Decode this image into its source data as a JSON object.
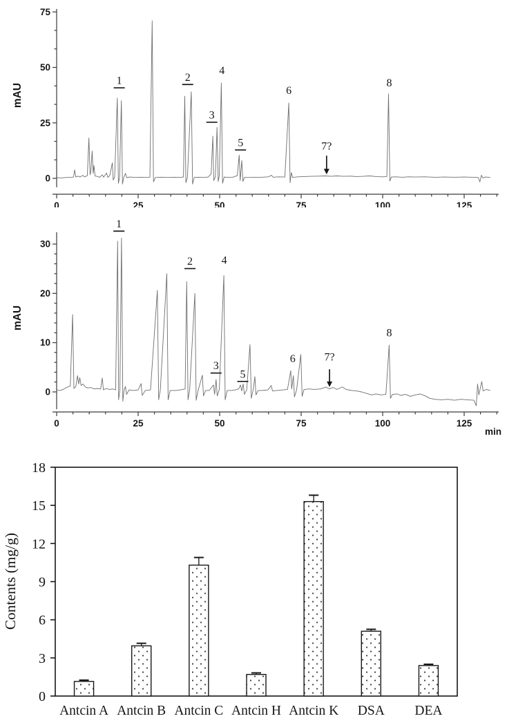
{
  "figure": {
    "background": "#ffffff",
    "trace_color": "#6e6e6e",
    "axis_color": "#3a3a3a",
    "text_color": "#161616"
  },
  "chart_data": [
    {
      "type": "line",
      "id": "chromatogram-top",
      "ylabel": "mAU",
      "xlabel": "",
      "xlim": [
        0,
        133
      ],
      "ylim": [
        -4,
        76
      ],
      "x_ticks": [
        0,
        25,
        50,
        75,
        100,
        125
      ],
      "y_ticks": [
        0,
        25,
        50,
        75
      ],
      "grid": false,
      "peak_labels": [
        {
          "text": "1",
          "x": 19.2,
          "y": 42.5,
          "underline": true
        },
        {
          "text": "2",
          "x": 40.2,
          "y": 44.0,
          "underline": true
        },
        {
          "text": "3",
          "x": 47.6,
          "y": 27.0,
          "underline": true
        },
        {
          "text": "4",
          "x": 50.7,
          "y": 47.0,
          "underline": false
        },
        {
          "text": "5",
          "x": 56.4,
          "y": 14.5,
          "underline": true
        },
        {
          "text": "6",
          "x": 71.2,
          "y": 38.0,
          "underline": false
        },
        {
          "text": "7?",
          "x": 82.8,
          "y": 13.0,
          "underline": false,
          "arrow": {
            "from_y": 10.2,
            "to_y": 1.8
          }
        },
        {
          "text": "8",
          "x": 102.0,
          "y": 41.5,
          "underline": false
        }
      ],
      "trace": [
        [
          0,
          0.3
        ],
        [
          1.5,
          0.2
        ],
        [
          3,
          0.4
        ],
        [
          4.5,
          0.4
        ],
        [
          5.2,
          0.6
        ],
        [
          5.5,
          3.8
        ],
        [
          5.9,
          0.6
        ],
        [
          6.6,
          1.0
        ],
        [
          7.2,
          0.6
        ],
        [
          8,
          1.3
        ],
        [
          8.6,
          0.7
        ],
        [
          9.4,
          1.2
        ],
        [
          9.9,
          18.2
        ],
        [
          10.25,
          1.6
        ],
        [
          10.5,
          3.2
        ],
        [
          10.9,
          12.3
        ],
        [
          11.2,
          2.2
        ],
        [
          11.45,
          5.8
        ],
        [
          11.8,
          1.0
        ],
        [
          12.4,
          0.9
        ],
        [
          13.2,
          0.5
        ],
        [
          14,
          1.6
        ],
        [
          14.4,
          0.5
        ],
        [
          15.3,
          2.4
        ],
        [
          15.7,
          0.4
        ],
        [
          16.3,
          1.2
        ],
        [
          17.1,
          7.0
        ],
        [
          17.35,
          -0.8
        ],
        [
          17.8,
          0.6
        ],
        [
          18.6,
          36.2
        ],
        [
          18.95,
          -2.2
        ],
        [
          19.3,
          0.4
        ],
        [
          19.85,
          35.0
        ],
        [
          20.2,
          -2.6
        ],
        [
          20.6,
          0.4
        ],
        [
          21.1,
          2.2
        ],
        [
          21.5,
          0.3
        ],
        [
          22.5,
          0.6
        ],
        [
          24,
          0.4
        ],
        [
          26,
          0.5
        ],
        [
          27.5,
          0.4
        ],
        [
          28.6,
          0.5
        ],
        [
          29.3,
          71.0
        ],
        [
          29.7,
          -1.6
        ],
        [
          30.3,
          0.4
        ],
        [
          32,
          0.5
        ],
        [
          34,
          0.4
        ],
        [
          36,
          0.5
        ],
        [
          38,
          0.4
        ],
        [
          38.9,
          0.6
        ],
        [
          39.3,
          37.0
        ],
        [
          39.65,
          -2.0
        ],
        [
          40.1,
          0.4
        ],
        [
          41.3,
          39.0
        ],
        [
          41.7,
          -2.6
        ],
        [
          42.2,
          0.4
        ],
        [
          43.5,
          0.5
        ],
        [
          45,
          0.4
        ],
        [
          46.5,
          0.6
        ],
        [
          47.4,
          2.0
        ],
        [
          47.9,
          19.0
        ],
        [
          48.2,
          -1.0
        ],
        [
          48.7,
          0.8
        ],
        [
          49.2,
          23.0
        ],
        [
          49.55,
          -1.4
        ],
        [
          49.9,
          1.2
        ],
        [
          50.5,
          43.0
        ],
        [
          50.9,
          -2.2
        ],
        [
          51.4,
          0.6
        ],
        [
          52.5,
          0.4
        ],
        [
          54,
          0.5
        ],
        [
          55.4,
          1.2
        ],
        [
          56.0,
          10.5
        ],
        [
          56.3,
          -1.0
        ],
        [
          56.8,
          8.0
        ],
        [
          57.15,
          -1.4
        ],
        [
          57.6,
          0.4
        ],
        [
          59,
          0.4
        ],
        [
          61,
          0.5
        ],
        [
          63,
          0.5
        ],
        [
          65,
          0.7
        ],
        [
          65.9,
          1.4
        ],
        [
          66.4,
          0.5
        ],
        [
          68,
          0.7
        ],
        [
          70,
          0.6
        ],
        [
          71.2,
          34.0
        ],
        [
          71.6,
          -2.0
        ],
        [
          72.0,
          2.6
        ],
        [
          72.4,
          0.4
        ],
        [
          74,
          0.7
        ],
        [
          76,
          0.8
        ],
        [
          78,
          0.9
        ],
        [
          80.5,
          1.0
        ],
        [
          82.5,
          1.1
        ],
        [
          84,
          0.9
        ],
        [
          86,
          1.1
        ],
        [
          88,
          0.9
        ],
        [
          90,
          1.0
        ],
        [
          92,
          0.8
        ],
        [
          94,
          0.9
        ],
        [
          96,
          1.1
        ],
        [
          98,
          0.8
        ],
        [
          100,
          0.7
        ],
        [
          101.3,
          0.8
        ],
        [
          101.8,
          38.0
        ],
        [
          102.2,
          -1.2
        ],
        [
          102.7,
          0.6
        ],
        [
          104,
          0.7
        ],
        [
          106,
          0.5
        ],
        [
          108,
          0.7
        ],
        [
          110,
          0.6
        ],
        [
          113,
          0.7
        ],
        [
          116,
          0.5
        ],
        [
          119,
          0.6
        ],
        [
          122,
          0.5
        ],
        [
          125,
          0.6
        ],
        [
          127.5,
          0.5
        ],
        [
          129.3,
          0.4
        ],
        [
          129.8,
          -1.6
        ],
        [
          130.3,
          1.4
        ],
        [
          130.7,
          0.2
        ],
        [
          131.5,
          0.6
        ],
        [
          133,
          0.4
        ]
      ]
    },
    {
      "type": "line",
      "id": "chromatogram-bottom",
      "ylabel": "mAU",
      "xlabel": "min",
      "xlim": [
        0,
        133
      ],
      "ylim": [
        -4,
        33
      ],
      "x_ticks": [
        0,
        25,
        50,
        75,
        100,
        125
      ],
      "y_ticks": [
        0,
        10,
        20,
        30
      ],
      "grid": false,
      "peak_labels": [
        {
          "text": "1",
          "x": 19.1,
          "y": 33.4,
          "underline": true
        },
        {
          "text": "2",
          "x": 40.9,
          "y": 25.8,
          "underline": true
        },
        {
          "text": "3",
          "x": 48.9,
          "y": 4.6,
          "underline": true
        },
        {
          "text": "4",
          "x": 51.4,
          "y": 26.0,
          "underline": false
        },
        {
          "text": "5",
          "x": 57.1,
          "y": 2.9,
          "underline": true
        },
        {
          "text": "6",
          "x": 72.4,
          "y": 6.0,
          "underline": false
        },
        {
          "text": "7?",
          "x": 83.7,
          "y": 6.4,
          "underline": false,
          "arrow": {
            "from_y": 4.6,
            "to_y": 1.0
          }
        },
        {
          "text": "8",
          "x": 102.0,
          "y": 11.3,
          "underline": false
        }
      ],
      "trace": [
        [
          0,
          0.4
        ],
        [
          1,
          0.3
        ],
        [
          2,
          0.5
        ],
        [
          3,
          0.9
        ],
        [
          4.2,
          1.2
        ],
        [
          4.9,
          15.7
        ],
        [
          5.3,
          0.7
        ],
        [
          5.9,
          1.1
        ],
        [
          6.4,
          3.3
        ],
        [
          6.75,
          1.6
        ],
        [
          7.1,
          2.9
        ],
        [
          7.5,
          1.3
        ],
        [
          8.1,
          1.6
        ],
        [
          8.8,
          1.0
        ],
        [
          9.6,
          0.8
        ],
        [
          10.5,
          0.9
        ],
        [
          11.5,
          0.6
        ],
        [
          12.5,
          0.7
        ],
        [
          13.5,
          0.6
        ],
        [
          14.0,
          2.8
        ],
        [
          14.35,
          0.4
        ],
        [
          15.2,
          0.7
        ],
        [
          16.2,
          0.5
        ],
        [
          17.2,
          0.6
        ],
        [
          18.1,
          0.4
        ],
        [
          18.7,
          30.6
        ],
        [
          19.0,
          -1.6
        ],
        [
          19.4,
          0.4
        ],
        [
          19.9,
          31.2
        ],
        [
          20.3,
          -1.9
        ],
        [
          20.7,
          0.4
        ],
        [
          21.1,
          1.1
        ],
        [
          21.45,
          -0.5
        ],
        [
          22.2,
          0.4
        ],
        [
          23.5,
          0.3
        ],
        [
          25,
          0.4
        ],
        [
          25.9,
          1.7
        ],
        [
          26.25,
          -0.7
        ],
        [
          27.2,
          0.3
        ],
        [
          28.8,
          0.4
        ],
        [
          30.9,
          20.6
        ],
        [
          31.3,
          -1.6
        ],
        [
          31.8,
          0.4
        ],
        [
          33.8,
          24.0
        ],
        [
          34.2,
          -1.6
        ],
        [
          34.8,
          0.3
        ],
        [
          36.5,
          0.3
        ],
        [
          38,
          0.4
        ],
        [
          39.4,
          0.6
        ],
        [
          39.9,
          22.4
        ],
        [
          40.3,
          -1.6
        ],
        [
          40.8,
          0.4
        ],
        [
          42.4,
          20.0
        ],
        [
          42.8,
          -1.7
        ],
        [
          43.4,
          0.3
        ],
        [
          44.7,
          3.4
        ],
        [
          45.05,
          -0.8
        ],
        [
          45.7,
          0.3
        ],
        [
          46.8,
          0.3
        ],
        [
          48.1,
          1.4
        ],
        [
          48.45,
          -0.5
        ],
        [
          48.9,
          2.5
        ],
        [
          49.25,
          -0.8
        ],
        [
          49.9,
          0.5
        ],
        [
          51.3,
          23.6
        ],
        [
          51.7,
          -1.6
        ],
        [
          52.3,
          0.3
        ],
        [
          53.5,
          0.3
        ],
        [
          54.8,
          0.4
        ],
        [
          55.8,
          0.6
        ],
        [
          56.4,
          1.4
        ],
        [
          56.75,
          0.2
        ],
        [
          57.2,
          1.6
        ],
        [
          57.6,
          -0.5
        ],
        [
          58.3,
          0.4
        ],
        [
          59.3,
          9.6
        ],
        [
          59.7,
          -1.3
        ],
        [
          60.3,
          0.5
        ],
        [
          60.8,
          3.1
        ],
        [
          61.15,
          -0.6
        ],
        [
          61.8,
          0.3
        ],
        [
          63,
          0.3
        ],
        [
          64.8,
          0.4
        ],
        [
          65.8,
          1.3
        ],
        [
          66.2,
          0.2
        ],
        [
          67.5,
          0.3
        ],
        [
          69.5,
          0.4
        ],
        [
          70.8,
          0.5
        ],
        [
          71.8,
          4.3
        ],
        [
          72.1,
          0.6
        ],
        [
          72.6,
          3.3
        ],
        [
          72.95,
          -1.0
        ],
        [
          73.6,
          0.4
        ],
        [
          74.9,
          7.6
        ],
        [
          75.3,
          -0.9
        ],
        [
          75.9,
          0.5
        ],
        [
          77.5,
          0.6
        ],
        [
          79,
          0.5
        ],
        [
          81,
          0.6
        ],
        [
          82.6,
          1.0
        ],
        [
          83.6,
          0.6
        ],
        [
          84.8,
          0.9
        ],
        [
          86,
          0.5
        ],
        [
          87.6,
          1.0
        ],
        [
          88.8,
          0.5
        ],
        [
          90.5,
          0.3
        ],
        [
          92,
          0.2
        ],
        [
          93.5,
          0.0
        ],
        [
          95,
          -0.3
        ],
        [
          96.5,
          -0.6
        ],
        [
          98,
          -0.4
        ],
        [
          99.5,
          -0.6
        ],
        [
          101,
          -0.5
        ],
        [
          102.0,
          9.5
        ],
        [
          102.4,
          -1.3
        ],
        [
          103,
          -0.5
        ],
        [
          104.5,
          -0.4
        ],
        [
          105.5,
          -0.7
        ],
        [
          107,
          -0.5
        ],
        [
          108.5,
          -0.9
        ],
        [
          110,
          -0.6
        ],
        [
          111.5,
          -0.4
        ],
        [
          113,
          -0.8
        ],
        [
          114.5,
          -1.3
        ],
        [
          116,
          -1.5
        ],
        [
          118,
          -1.6
        ],
        [
          120,
          -1.5
        ],
        [
          122,
          -1.7
        ],
        [
          124,
          -1.5
        ],
        [
          126,
          -1.6
        ],
        [
          128,
          -1.7
        ],
        [
          128.7,
          -2.8
        ],
        [
          129.1,
          1.6
        ],
        [
          129.5,
          -0.6
        ],
        [
          130.4,
          2.1
        ],
        [
          130.8,
          0.2
        ],
        [
          131.8,
          0.5
        ],
        [
          133,
          0.3
        ]
      ]
    },
    {
      "type": "bar",
      "id": "contents-bar-chart",
      "title": "",
      "xlabel": "",
      "ylabel": "Contents (mg/g)",
      "categories": [
        "Antcin A",
        "Antcin B",
        "Antcin C",
        "Antcin H",
        "Antcin K",
        "DSA",
        "DEA"
      ],
      "values": [
        1.15,
        3.95,
        10.3,
        1.7,
        15.3,
        5.1,
        2.4
      ],
      "errors": [
        0.1,
        0.2,
        0.6,
        0.12,
        0.5,
        0.15,
        0.1
      ],
      "y_ticks": [
        0,
        3,
        6,
        9,
        12,
        15,
        18
      ],
      "ylim": [
        0,
        18
      ],
      "grid": false,
      "legend": "none",
      "bar_fill": "white-with-dot-pattern"
    }
  ]
}
